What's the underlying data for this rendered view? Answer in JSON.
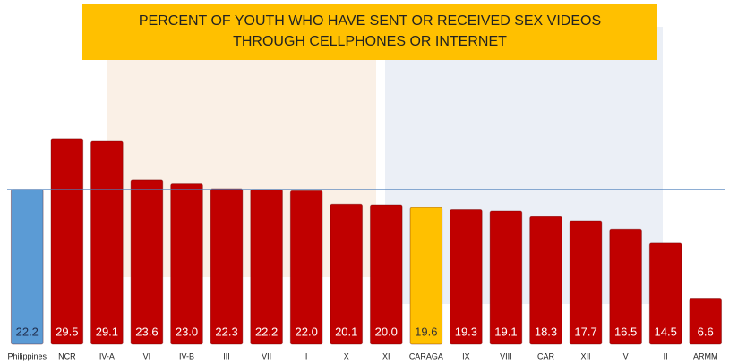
{
  "chart_data": {
    "type": "bar",
    "title": [
      "PERCENT OF YOUTH WHO HAVE SENT OR RECEIVED SEX VIDEOS",
      "THROUGH CELLPHONES OR INTERNET"
    ],
    "categories": [
      "Philippines",
      "NCR",
      "IV-A",
      "VI",
      "IV-B",
      "III",
      "VII",
      "I",
      "X",
      "XI",
      "CARAGA",
      "IX",
      "VIII",
      "CAR",
      "XII",
      "V",
      "II",
      "ARMM"
    ],
    "values": [
      22.2,
      29.5,
      29.1,
      23.6,
      23.0,
      22.3,
      22.2,
      22.0,
      20.1,
      20.0,
      19.6,
      19.3,
      19.1,
      18.3,
      17.7,
      16.5,
      14.5,
      6.6
    ],
    "value_labels": [
      "22.2",
      "29.5",
      "29.1",
      "23.6",
      "23.0",
      "22.3",
      "22.2",
      "22.0",
      "20.1",
      "20.0",
      "19.6",
      "19.3",
      "19.1",
      "18.3",
      "17.7",
      "16.5",
      "14.5",
      "6.6"
    ],
    "colors": [
      "#5b9bd5",
      "#c00000",
      "#c00000",
      "#c00000",
      "#c00000",
      "#c00000",
      "#c00000",
      "#c00000",
      "#c00000",
      "#c00000",
      "#ffc000",
      "#c00000",
      "#c00000",
      "#c00000",
      "#c00000",
      "#c00000",
      "#c00000",
      "#c00000"
    ],
    "ylim": [
      0,
      30
    ]
  }
}
